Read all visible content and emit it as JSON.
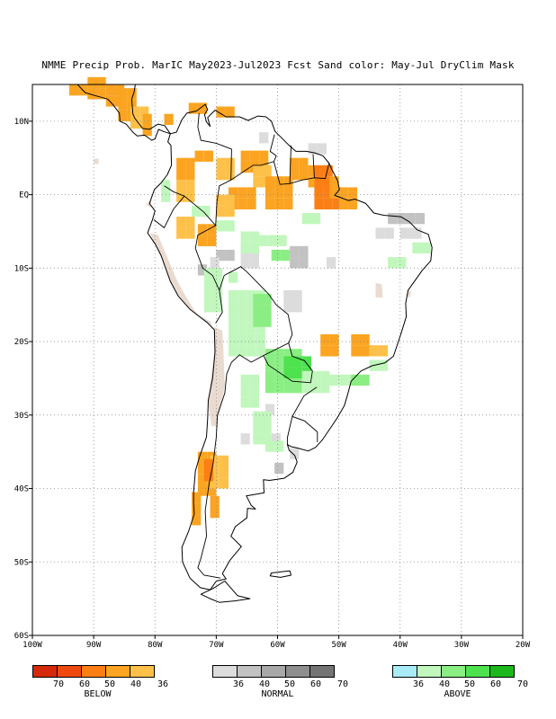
{
  "title": "NMME Precip Prob. MarIC  May2023-Jul2023 Fcst  Sand color: May-Jul DryClim Mask",
  "map": {
    "lon_range": [
      -100,
      -20
    ],
    "lat_range": [
      -60,
      15
    ],
    "x_tick_labels": [
      "100W",
      "90W",
      "80W",
      "70W",
      "60W",
      "50W",
      "40W",
      "30W",
      "20W"
    ],
    "y_tick_labels": [
      "10N",
      "EQ",
      "10S",
      "20S",
      "30S",
      "40S",
      "50S",
      "60S"
    ],
    "colors": {
      "below": [
        "#d42a0a",
        "#ee4a10",
        "#fb7f14",
        "#fba421",
        "#fdc14a"
      ],
      "normal": [
        "#dcdcdc",
        "#c2c2c2",
        "#a8a8a8",
        "#8e8e8e",
        "#747474"
      ],
      "above": [
        "#a9ecf8",
        "#c1f7bd",
        "#8bee84",
        "#4fe24f",
        "#1cb71c"
      ],
      "dry_mask": "#eadbd1",
      "land_outline": "#000000",
      "grid": "#8a8a8a"
    }
  },
  "legends": {
    "below": {
      "labels": [
        "70",
        "60",
        "50",
        "40",
        "36"
      ],
      "caption": "BELOW"
    },
    "normal": {
      "labels": [
        "36",
        "40",
        "50",
        "60",
        "70"
      ],
      "caption": "NORMAL"
    },
    "above": {
      "labels": [
        "36",
        "40",
        "50",
        "60",
        "70"
      ],
      "caption": "ABOVE"
    }
  }
}
